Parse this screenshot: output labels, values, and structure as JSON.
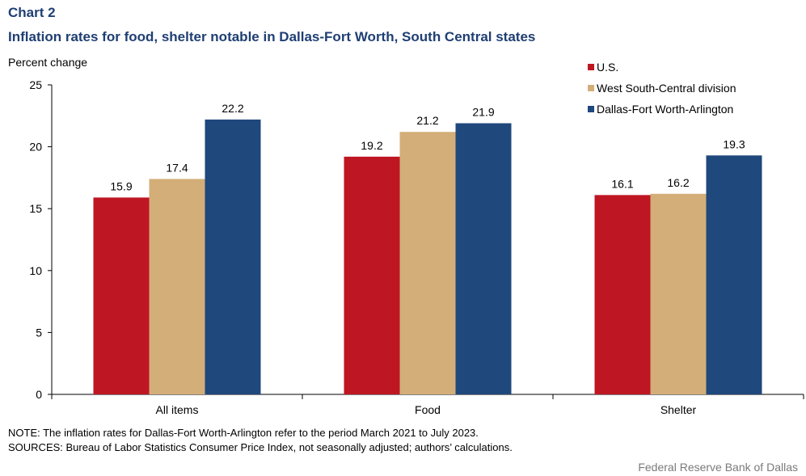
{
  "header": {
    "chart_label": "Chart 2",
    "title": "Inflation rates for food, shelter notable in Dallas-Fort Worth, South Central states"
  },
  "chart_data": {
    "type": "bar",
    "title": "Inflation rates for food, shelter notable in Dallas-Fort Worth, South Central states",
    "ylabel": "Percent change",
    "xlabel": "",
    "categories": [
      "All items",
      "Food",
      "Shelter"
    ],
    "series": [
      {
        "name": "U.S.",
        "color": "#be1622",
        "values": [
          15.9,
          19.2,
          16.1
        ]
      },
      {
        "name": "West South-Central division",
        "color": "#d4ae78",
        "values": [
          17.4,
          21.2,
          16.2
        ]
      },
      {
        "name": "Dallas-Fort Worth-Arlington",
        "color": "#1f487c",
        "values": [
          22.2,
          21.9,
          19.3
        ]
      }
    ],
    "ylim": [
      0,
      25
    ],
    "yticks": [
      0,
      5,
      10,
      15,
      20,
      25
    ],
    "data_labels": true,
    "grid": false,
    "legend_position": "top-right"
  },
  "footer": {
    "note": "NOTE: The inflation rates for Dallas-Fort Worth-Arlington refer to the period March 2021 to July 2023.",
    "sources": "SOURCES: Bureau of Labor Statistics Consumer Price Index, not seasonally adjusted; authors’ calculations.",
    "credit": "Federal Reserve Bank of Dallas"
  }
}
